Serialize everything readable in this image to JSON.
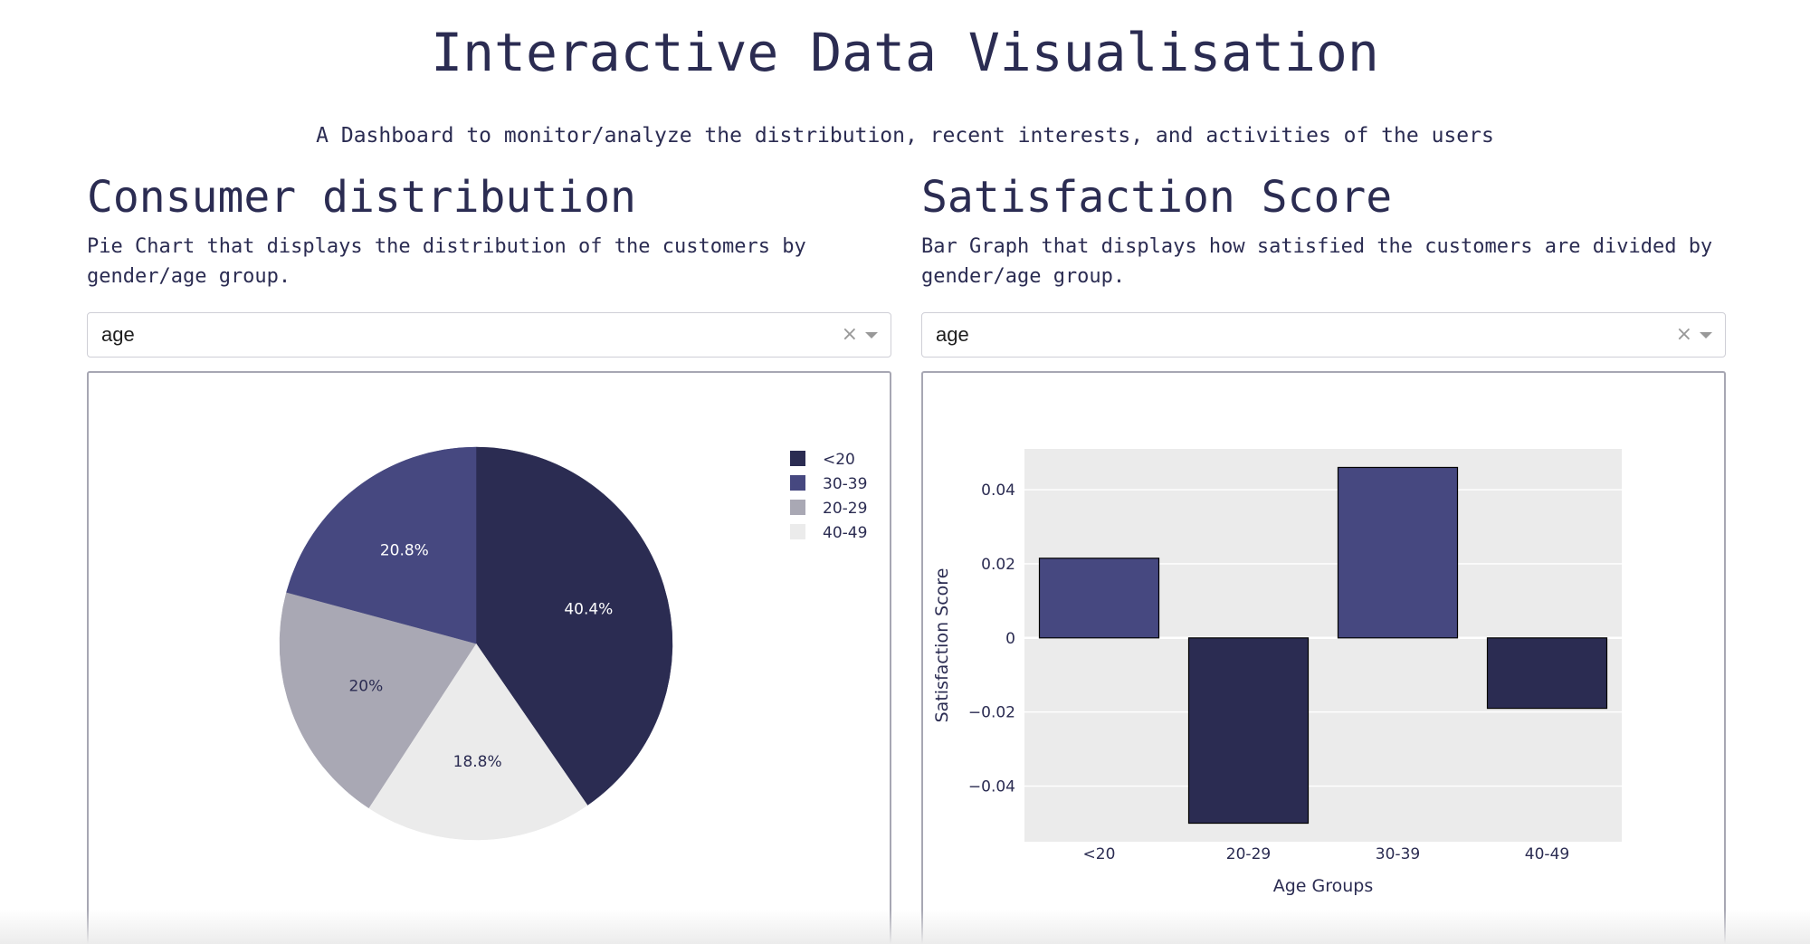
{
  "header": {
    "title": "Interactive Data Visualisation",
    "subtitle": "A Dashboard to monitor/analyze the distribution, recent interests, and activities of the users"
  },
  "left_panel": {
    "title": "Consumer distribution",
    "description": "Pie Chart that displays the distribution of the customers by gender/age group.",
    "dropdown": {
      "value": "age",
      "clear_icon": "close-icon",
      "caret_icon": "chevron-down-icon"
    }
  },
  "right_panel": {
    "title": "Satisfaction Score",
    "description": "Bar Graph that displays how satisfied the customers are divided by gender/age group.",
    "dropdown": {
      "value": "age",
      "clear_icon": "close-icon",
      "caret_icon": "chevron-down-icon"
    }
  },
  "chart_data": [
    {
      "type": "pie",
      "slices": [
        {
          "label": "<20",
          "value": 40.4,
          "text": "40.4%",
          "color": "#2b2c52"
        },
        {
          "label": "40-49",
          "value": 18.8,
          "text": "18.8%",
          "color": "#ebebeb"
        },
        {
          "label": "20-29",
          "value": 20.0,
          "text": "20%",
          "color": "#a9a8b4"
        },
        {
          "label": "30-39",
          "value": 20.8,
          "text": "20.8%",
          "color": "#464880"
        }
      ],
      "legend": {
        "placement": "top-right",
        "entries": [
          {
            "label": "<20",
            "color": "#2b2c52"
          },
          {
            "label": "30-39",
            "color": "#464880"
          },
          {
            "label": "20-29",
            "color": "#a9a8b4"
          },
          {
            "label": "40-49",
            "color": "#ebebeb"
          }
        ]
      }
    },
    {
      "type": "bar",
      "categories": [
        "<20",
        "20-29",
        "30-39",
        "40-49"
      ],
      "values": [
        0.0215,
        -0.05,
        0.046,
        -0.019
      ],
      "colors": [
        "#464880",
        "#2b2c52",
        "#464880",
        "#2b2c52"
      ],
      "xlabel": "Age Groups",
      "ylabel": "Satisfaction Score",
      "ylim": [
        -0.055,
        0.051
      ],
      "yticks": [
        0.04,
        0.02,
        0,
        -0.02,
        -0.04
      ],
      "ytick_labels": [
        "0.04",
        "0.02",
        "0",
        "−0.02",
        "−0.04"
      ],
      "grid": true,
      "plot_background": "#ebebeb"
    }
  ]
}
